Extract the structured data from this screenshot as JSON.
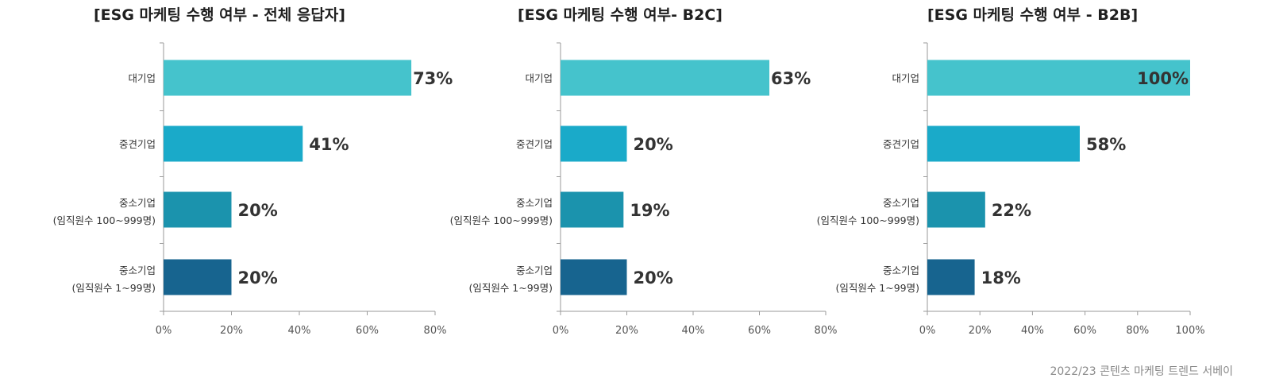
{
  "chart_data": [
    {
      "type": "bar",
      "orientation": "horizontal",
      "title": "[ESG 마케팅 수행 여부  -  전체 응답자]",
      "categories": [
        [
          "대기업"
        ],
        [
          "중견기업"
        ],
        [
          "중소기업",
          "(임직원수 100~999명)"
        ],
        [
          "중소기업",
          "(임직원수 1~99명)"
        ]
      ],
      "values": [
        73,
        41,
        20,
        20
      ],
      "value_labels": [
        "73%",
        "41%",
        "20%",
        "20%"
      ],
      "xlim": [
        0,
        80
      ],
      "ticks": [
        "0%",
        "20%",
        "40%",
        "60%",
        "80%"
      ],
      "colors": [
        "#45c3cc",
        "#1aaac9",
        "#1b93ad",
        "#17648f"
      ]
    },
    {
      "type": "bar",
      "orientation": "horizontal",
      "title": "[ESG 마케팅 수행 여부- B2C]",
      "categories": [
        [
          "대기업"
        ],
        [
          "중견기업"
        ],
        [
          "중소기업",
          "(임직원수 100~999명)"
        ],
        [
          "중소기업",
          "(임직원수 1~99명)"
        ]
      ],
      "values": [
        63,
        20,
        19,
        20
      ],
      "value_labels": [
        "63%",
        "20%",
        "19%",
        "20%"
      ],
      "xlim": [
        0,
        80
      ],
      "ticks": [
        "0%",
        "20%",
        "40%",
        "60%",
        "80%"
      ],
      "colors": [
        "#45c3cc",
        "#1aaac9",
        "#1b93ad",
        "#17648f"
      ]
    },
    {
      "type": "bar",
      "orientation": "horizontal",
      "title": "[ESG 마케팅 수행 여부  - B2B]",
      "categories": [
        [
          "대기업"
        ],
        [
          "중견기업"
        ],
        [
          "중소기업",
          "(임직원수 100~999명)"
        ],
        [
          "중소기업",
          "(임직원수 1~99명)"
        ]
      ],
      "values": [
        100,
        58,
        22,
        18
      ],
      "value_labels": [
        "100%",
        "58%",
        "22%",
        "18%"
      ],
      "xlim": [
        0,
        100
      ],
      "ticks": [
        "0%",
        "20%",
        "40%",
        "60%",
        "80%",
        "100%"
      ],
      "colors": [
        "#45c3cc",
        "#1aaac9",
        "#1b93ad",
        "#17648f"
      ]
    }
  ],
  "source": "2022/23 콘텐츠 마케팅 트렌드 서베이"
}
